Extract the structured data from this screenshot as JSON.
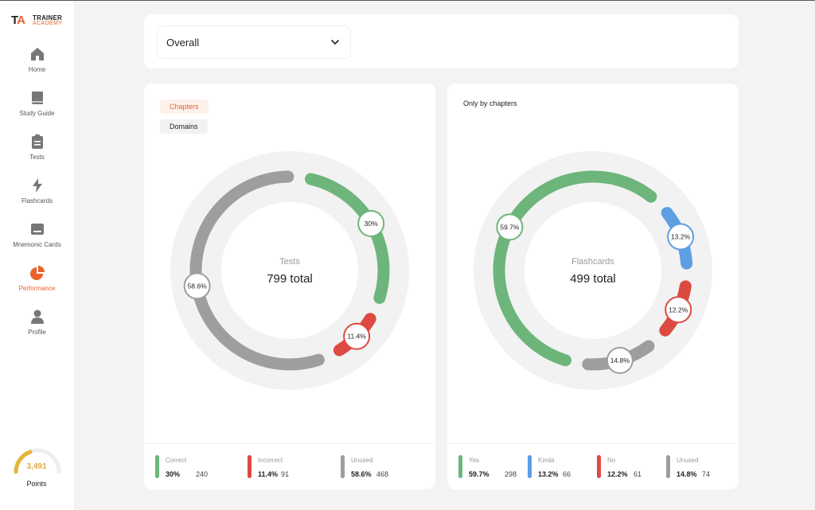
{
  "brand": {
    "initials_t": "T",
    "initials_a": "A",
    "line1": "TRAINER",
    "line2": "ACADEMY"
  },
  "nav": [
    {
      "label": "Home",
      "icon": "home-icon"
    },
    {
      "label": "Study Guide",
      "icon": "book-icon"
    },
    {
      "label": "Tests",
      "icon": "clipboard-icon"
    },
    {
      "label": "Flashcards",
      "icon": "lightning-icon"
    },
    {
      "label": "Mnemonic Cards",
      "icon": "card-icon"
    },
    {
      "label": "Performance",
      "icon": "pie-chart-icon"
    },
    {
      "label": "Profile",
      "icon": "user-icon"
    }
  ],
  "points": {
    "value": "3,491",
    "label": "Points"
  },
  "filter": {
    "selected": "Overall"
  },
  "tests_card": {
    "tabs": {
      "chapters": "Chapters",
      "domains": "Domains"
    },
    "center_label": "Tests",
    "center_total": "799 total",
    "legend": [
      {
        "name": "Correct",
        "pct": "30%",
        "count": "240",
        "color": "#6db57a"
      },
      {
        "name": "Incorrect",
        "pct": "11.4%",
        "count": "91",
        "color": "#dd4a42"
      },
      {
        "name": "Unused",
        "pct": "58.6%",
        "count": "468",
        "color": "#9e9e9e"
      }
    ]
  },
  "flash_card": {
    "subtitle": "Only by chapters",
    "center_label": "Flashcards",
    "center_total": "499 total",
    "legend": [
      {
        "name": "Yes",
        "pct": "59.7%",
        "count": "298",
        "color": "#6db57a"
      },
      {
        "name": "Kinda",
        "pct": "13.2%",
        "count": "66",
        "color": "#5e9ee3"
      },
      {
        "name": "No",
        "pct": "12.2%",
        "count": "61",
        "color": "#dd4a42"
      },
      {
        "name": "Unused",
        "pct": "14.8%",
        "count": "74",
        "color": "#9e9e9e"
      }
    ]
  },
  "chart_data": [
    {
      "type": "pie",
      "title": "Tests",
      "subtitle": "799 total",
      "categories": [
        "Correct",
        "Incorrect",
        "Unused"
      ],
      "values": [
        30,
        11.4,
        58.6
      ],
      "counts": [
        240,
        91,
        468
      ],
      "labels": [
        "30%",
        "11.4%",
        "58.6%"
      ],
      "colors": [
        "#6db57a",
        "#dd4a42",
        "#9e9e9e"
      ]
    },
    {
      "type": "pie",
      "title": "Flashcards",
      "subtitle": "499 total",
      "categories": [
        "Yes",
        "Kinda",
        "No",
        "Unused"
      ],
      "values": [
        59.7,
        13.2,
        12.2,
        14.8
      ],
      "counts": [
        298,
        66,
        61,
        74
      ],
      "labels": [
        "59.7%",
        "13.2%",
        "12.2%",
        "14.8%"
      ],
      "colors": [
        "#6db57a",
        "#5e9ee3",
        "#dd4a42",
        "#9e9e9e"
      ]
    }
  ]
}
